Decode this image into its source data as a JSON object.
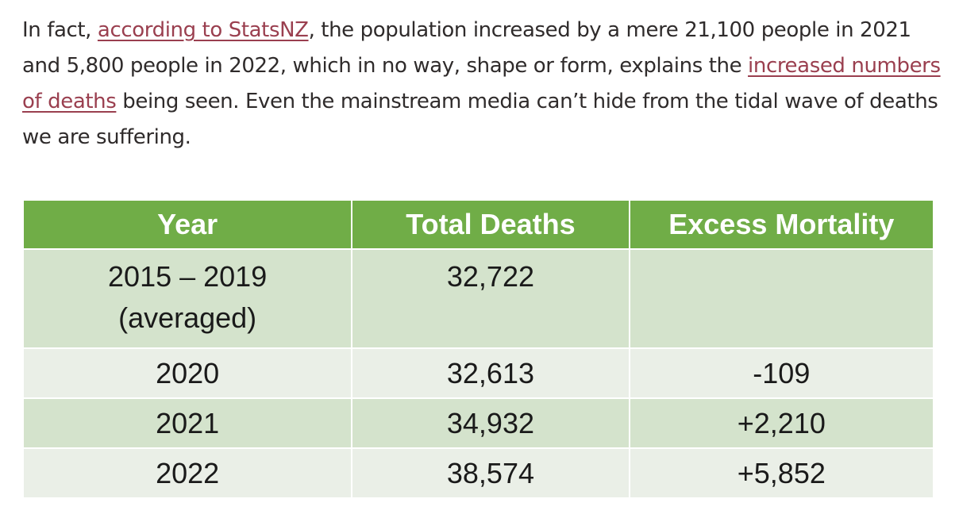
{
  "paragraph": {
    "text_1": "In fact, ",
    "link_1": "according to StatsNZ",
    "text_2": ", the population increased by a mere 21,100 people in 2021 and 5,800 people in 2022, which in no way, shape or form, explains the ",
    "link_2": "increased numbers of deaths",
    "text_3": " being seen. Even the mainstream media can’t hide from the tidal wave of deaths we are suffering."
  },
  "colors": {
    "link": "#9a3f4f",
    "header_bg": "#70ad47",
    "row_dark": "#d4e3cc",
    "row_light": "#eaefe7"
  },
  "table": {
    "headers": [
      "Year",
      "Total Deaths",
      "Excess Mortality"
    ],
    "rows": [
      {
        "year_line1": "2015 – 2019",
        "year_line2": "(averaged)",
        "total": "32,722",
        "excess": ""
      },
      {
        "year": "2020",
        "total": "32,613",
        "excess": "-109"
      },
      {
        "year": "2021",
        "total": "34,932",
        "excess": "+2,210"
      },
      {
        "year": "2022",
        "total": "38,574",
        "excess": "+5,852"
      }
    ]
  }
}
